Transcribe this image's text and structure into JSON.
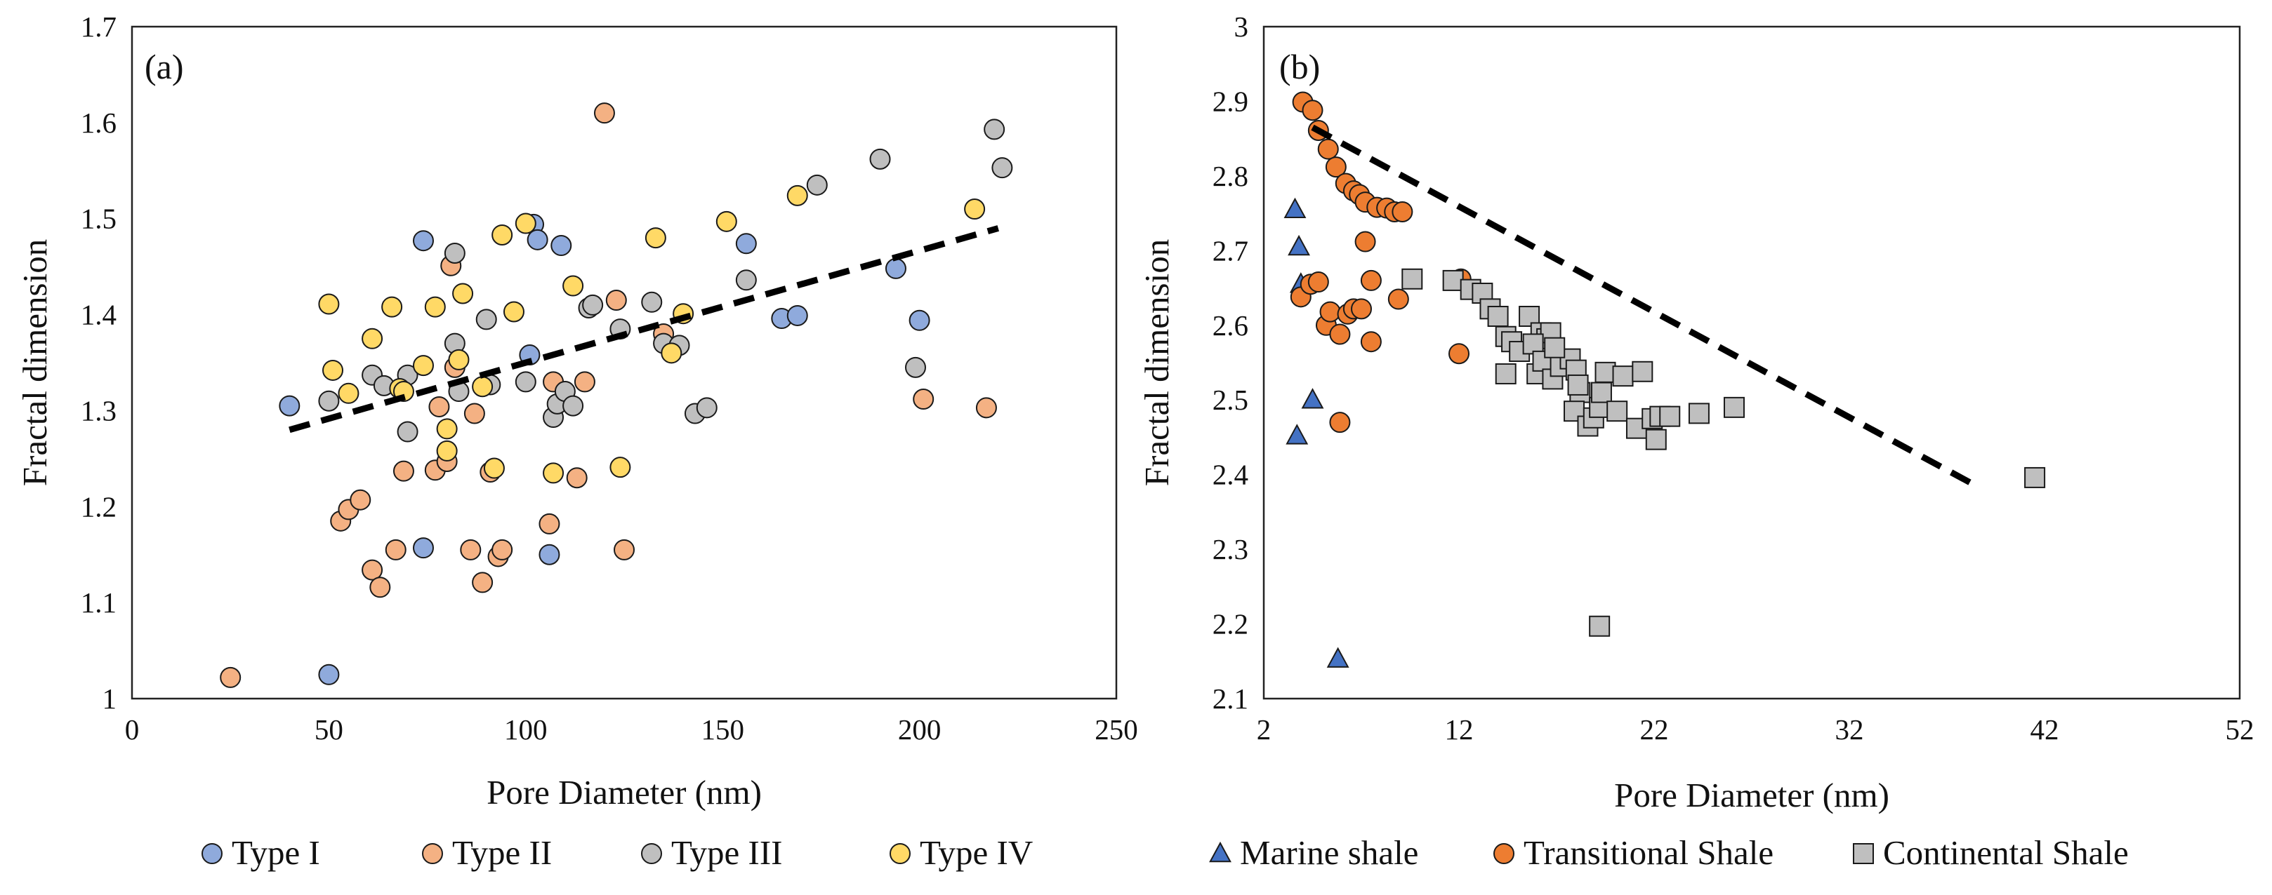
{
  "chart_data": [
    {
      "type": "scatter",
      "panel_label": "(a)",
      "xlabel": "Pore Diameter (nm)",
      "ylabel": "Fractal dimension",
      "xlim": [
        0,
        250
      ],
      "ylim": [
        1,
        1.7
      ],
      "xticks": [
        0,
        50,
        100,
        150,
        200,
        250
      ],
      "yticks": [
        1,
        1.1,
        1.2,
        1.3,
        1.4,
        1.5,
        1.6,
        1.7
      ],
      "grid": false,
      "legend_position": "bottom",
      "trendline": {
        "style": "dashed",
        "x": [
          40,
          220
        ],
        "y": [
          1.28,
          1.49
        ]
      },
      "series": [
        {
          "name": "Type I",
          "marker": "circle",
          "color": "#8FAADC",
          "x": [
            40,
            50,
            74,
            74,
            101,
            102,
            103,
            106,
            109,
            156,
            165,
            169,
            194,
            200
          ],
          "y": [
            1.305,
            1.025,
            1.477,
            1.157,
            1.358,
            1.494,
            1.478,
            1.15,
            1.472,
            1.474,
            1.396,
            1.399,
            1.448,
            1.394
          ]
        },
        {
          "name": "Type II",
          "marker": "circle",
          "color": "#F4B183",
          "x": [
            25,
            53,
            55,
            58,
            61,
            63,
            67,
            69,
            77,
            78,
            80,
            81,
            82,
            86,
            87,
            89,
            91,
            93,
            94,
            106,
            107,
            113,
            115,
            120,
            123,
            125,
            135,
            201,
            217
          ],
          "y": [
            1.022,
            1.185,
            1.197,
            1.207,
            1.134,
            1.116,
            1.155,
            1.237,
            1.238,
            1.304,
            1.247,
            1.451,
            1.345,
            1.155,
            1.297,
            1.121,
            1.236,
            1.148,
            1.155,
            1.182,
            1.33,
            1.23,
            1.33,
            1.61,
            1.415,
            1.155,
            1.38,
            1.312,
            1.303
          ]
        },
        {
          "name": "Type III",
          "marker": "circle",
          "color": "#BFBFBF",
          "x": [
            50,
            61,
            64,
            70,
            70,
            82,
            82,
            83,
            90,
            91,
            100,
            107,
            108,
            110,
            112,
            116,
            117,
            124,
            132,
            135,
            139,
            143,
            146,
            156,
            174,
            190,
            199,
            219,
            221
          ],
          "y": [
            1.31,
            1.337,
            1.326,
            1.337,
            1.278,
            1.464,
            1.37,
            1.32,
            1.395,
            1.327,
            1.33,
            1.293,
            1.307,
            1.32,
            1.305,
            1.407,
            1.41,
            1.385,
            1.413,
            1.37,
            1.368,
            1.297,
            1.303,
            1.436,
            1.535,
            1.562,
            1.345,
            1.593,
            1.553
          ]
        },
        {
          "name": "Type IV",
          "marker": "circle",
          "color": "#FFD966",
          "x": [
            50,
            51,
            55,
            61,
            66,
            68,
            69,
            74,
            77,
            80,
            80,
            83,
            84,
            89,
            92,
            94,
            97,
            100,
            107,
            112,
            124,
            133,
            137,
            140,
            151,
            169,
            214
          ],
          "y": [
            1.411,
            1.342,
            1.318,
            1.375,
            1.408,
            1.323,
            1.32,
            1.347,
            1.408,
            1.281,
            1.258,
            1.353,
            1.422,
            1.325,
            1.24,
            1.483,
            1.403,
            1.495,
            1.235,
            1.43,
            1.241,
            1.48,
            1.36,
            1.401,
            1.497,
            1.524,
            1.51
          ]
        }
      ]
    },
    {
      "type": "scatter",
      "panel_label": "(b)",
      "xlabel": "Pore Diameter (nm)",
      "ylabel": "Fractal dimension",
      "xlim": [
        2,
        52
      ],
      "ylim": [
        2.1,
        3
      ],
      "xticks": [
        2,
        12,
        22,
        32,
        42,
        52
      ],
      "yticks": [
        2.1,
        2.2,
        2.3,
        2.4,
        2.5,
        2.6,
        2.7,
        2.8,
        2.9,
        3
      ],
      "grid": false,
      "legend_position": "bottom",
      "trendline": {
        "style": "dashed",
        "x": [
          4.5,
          38.5
        ],
        "y": [
          2.865,
          2.385
        ]
      },
      "series": [
        {
          "name": "Marine shale",
          "marker": "triangle",
          "color": "#4472C4",
          "x": [
            3.6,
            3.8,
            3.9,
            4.5,
            3.7,
            5.8
          ],
          "y": [
            2.755,
            2.705,
            2.655,
            2.5,
            2.452,
            2.153
          ]
        },
        {
          "name": "Transitional Shale",
          "marker": "circle",
          "color": "#ED7D31",
          "x": [
            4.0,
            4.5,
            4.8,
            5.3,
            5.7,
            6.2,
            6.6,
            6.9,
            7.2,
            7.8,
            8.3,
            8.7,
            9.1,
            3.9,
            4.4,
            4.8,
            5.2,
            5.4,
            5.9,
            6.3,
            6.6,
            7.0,
            7.5,
            8.9,
            7.2,
            7.5,
            5.9,
            12.0,
            12.1
          ],
          "y": [
            2.899,
            2.888,
            2.861,
            2.836,
            2.812,
            2.79,
            2.78,
            2.775,
            2.765,
            2.758,
            2.757,
            2.752,
            2.752,
            2.638,
            2.655,
            2.658,
            2.6,
            2.618,
            2.588,
            2.615,
            2.622,
            2.622,
            2.578,
            2.635,
            2.712,
            2.66,
            2.47,
            2.562,
            2.662
          ]
        },
        {
          "name": "Continental Shale",
          "marker": "square",
          "color": "#BFBFBF",
          "x": [
            9.6,
            11.7,
            12.6,
            13.2,
            13.6,
            14.0,
            14.4,
            14.7,
            14.4,
            15.1,
            15.6,
            16.2,
            16.0,
            16.5,
            16.7,
            15.8,
            16.3,
            16.8,
            17.2,
            17.7,
            18.0,
            18.2,
            17.9,
            18.1,
            18.6,
            18.9,
            19.2,
            19.3,
            19.5,
            20.4,
            20.1,
            21.1,
            21.4,
            21.9,
            22.1,
            22.3,
            22.8,
            24.3,
            26.1,
            41.5,
            19.2,
            16.9
          ],
          "y": [
            2.662,
            2.66,
            2.648,
            2.643,
            2.622,
            2.612,
            2.585,
            2.578,
            2.535,
            2.565,
            2.612,
            2.59,
            2.535,
            2.582,
            2.59,
            2.575,
            2.552,
            2.528,
            2.545,
            2.555,
            2.54,
            2.51,
            2.485,
            2.52,
            2.465,
            2.476,
            2.49,
            2.51,
            2.537,
            2.532,
            2.485,
            2.462,
            2.538,
            2.475,
            2.447,
            2.478,
            2.478,
            2.482,
            2.49,
            2.396,
            2.197,
            2.57
          ]
        }
      ]
    }
  ]
}
